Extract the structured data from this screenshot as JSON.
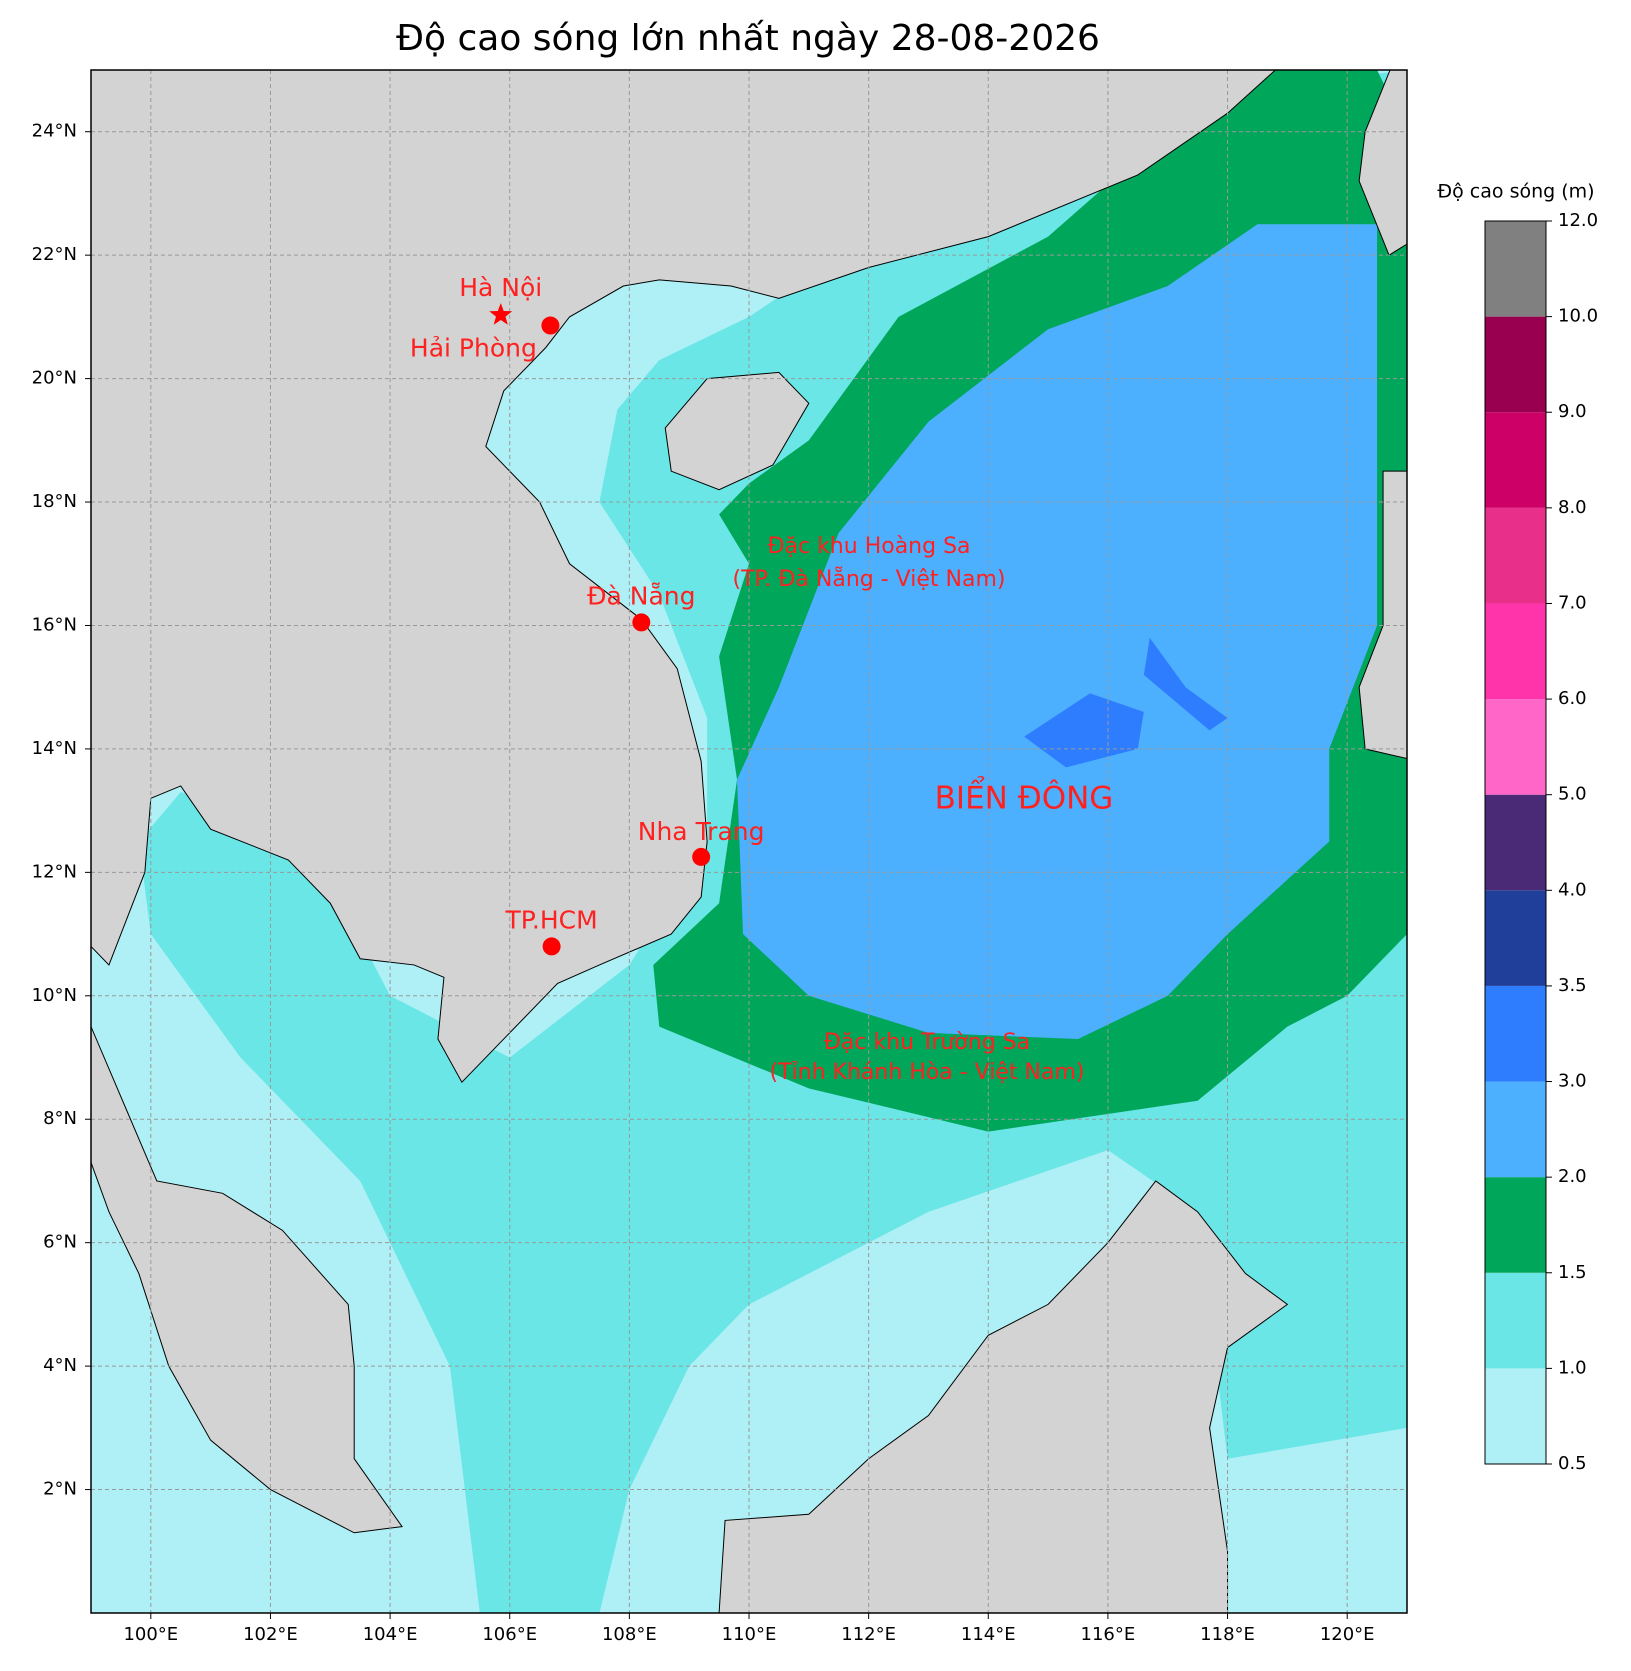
{
  "map": {
    "title": "Độ cao sóng lớn nhất ngày 28-08-2026",
    "lon_range": [
      99,
      121
    ],
    "lat_range": [
      0,
      25
    ],
    "xticks": [
      {
        "value": 100,
        "label": "100°E"
      },
      {
        "value": 102,
        "label": "102°E"
      },
      {
        "value": 104,
        "label": "104°E"
      },
      {
        "value": 106,
        "label": "106°E"
      },
      {
        "value": 108,
        "label": "108°E"
      },
      {
        "value": 110,
        "label": "110°E"
      },
      {
        "value": 112,
        "label": "112°E"
      },
      {
        "value": 114,
        "label": "114°E"
      },
      {
        "value": 116,
        "label": "116°E"
      },
      {
        "value": 118,
        "label": "118°E"
      },
      {
        "value": 120,
        "label": "120°E"
      }
    ],
    "yticks": [
      {
        "value": 2,
        "label": "2°N"
      },
      {
        "value": 4,
        "label": "4°N"
      },
      {
        "value": 6,
        "label": "6°N"
      },
      {
        "value": 8,
        "label": "8°N"
      },
      {
        "value": 10,
        "label": "10°N"
      },
      {
        "value": 12,
        "label": "12°N"
      },
      {
        "value": 14,
        "label": "14°N"
      },
      {
        "value": 16,
        "label": "16°N"
      },
      {
        "value": 18,
        "label": "18°N"
      },
      {
        "value": 20,
        "label": "20°N"
      },
      {
        "value": 22,
        "label": "22°N"
      },
      {
        "value": 24,
        "label": "24°N"
      }
    ],
    "grid": true,
    "places": [
      {
        "name": "Hà Nội",
        "lon": 105.85,
        "lat": 21.03,
        "marker": "star"
      },
      {
        "name": "Hải Phòng",
        "lon": 106.68,
        "lat": 20.86,
        "marker": "circle"
      },
      {
        "name": "Đà Nẵng",
        "lon": 108.2,
        "lat": 16.05,
        "marker": "circle"
      },
      {
        "name": "Nha Trang",
        "lon": 109.2,
        "lat": 12.25,
        "marker": "circle"
      },
      {
        "name": "TP.HCM",
        "lon": 106.7,
        "lat": 10.8,
        "marker": "circle"
      }
    ],
    "annotations": {
      "hoang_sa": [
        "Đặc khu Hoàng Sa",
        "(TP. Đà Nẵng - Việt Nam)"
      ],
      "bien_dong": "BIỂN ĐÔNG",
      "truong_sa": [
        "Đặc khu Trường Sa",
        "(Tỉnh Khánh Hòa - Việt Nam)"
      ]
    },
    "colorbar": {
      "title": "Độ cao sóng (m)",
      "levels": [
        0.5,
        {
          "value": 1,
          "label": "1.0"
        },
        1.5,
        {
          "value": 2,
          "label": "2.0"
        },
        {
          "value": 3,
          "label": "3.0"
        },
        3.5,
        {
          "value": 4,
          "label": "4.0"
        },
        {
          "value": 5,
          "label": "5.0"
        },
        {
          "value": 6,
          "label": "6.0"
        },
        {
          "value": 7,
          "label": "7.0"
        },
        {
          "value": 8,
          "label": "8.0"
        },
        {
          "value": 9,
          "label": "9.0"
        },
        {
          "value": 10,
          "label": "10.0"
        },
        {
          "value": 12,
          "label": "12.0"
        }
      ],
      "colors": [
        "#aef0f5",
        "#6ae6e6",
        "#00a65a",
        "#4db0ff",
        "#2e7dff",
        "#1f3f9a",
        "#4a2a77",
        "#ff66c8",
        "#ff33aa",
        "#e8308a",
        "#cc0066",
        "#990050",
        "#808080"
      ]
    }
  }
}
